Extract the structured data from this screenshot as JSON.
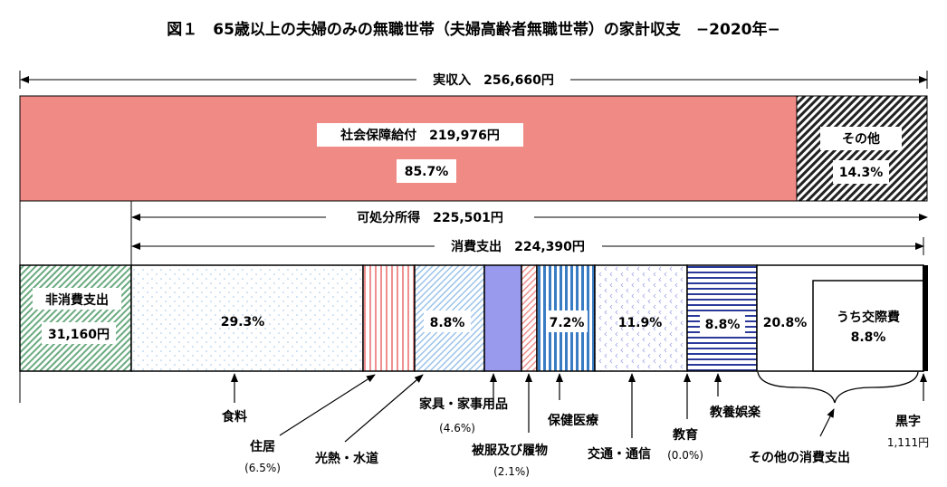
{
  "title": "図１　65歳以上の夫婦のみの無職世帯（夫婦高齢者無職世帯）の家計収支　−2020年−",
  "income": {
    "label": "実収入　256,660円",
    "social_security": {
      "label": "社会保障給付　219,976円",
      "pct": "85.7%",
      "share": 85.7,
      "color": "#f08a84"
    },
    "other": {
      "label": "その他",
      "pct": "14.3%",
      "share": 14.3
    }
  },
  "disposable_income": {
    "label": "可処分所得　225,501円"
  },
  "consumption": {
    "label": "消費支出　224,390円"
  },
  "non_consumption": {
    "label": "非消費支出",
    "amount": "31,160円"
  },
  "segments": {
    "food": {
      "name": "食料",
      "pct": "29.3%"
    },
    "housing": {
      "name": "住居",
      "pct": "(6.5%)"
    },
    "utilities": {
      "name": "光熱・水道"
    },
    "furniture": {
      "name": "家具・家事用品",
      "pct_in_bar": "8.8%",
      "pct": "(4.6%)"
    },
    "clothing": {
      "name": "被服及び履物",
      "pct": "(2.1%)"
    },
    "health": {
      "name": "保健医療",
      "pct": "7.2%"
    },
    "transport": {
      "name": "交通・通信",
      "pct": "11.9%"
    },
    "education": {
      "name": "教育",
      "pct": "(0.0%)"
    },
    "recreation": {
      "name": "教養娯楽",
      "pct": "8.8%"
    },
    "other": {
      "name": "その他の消費支出",
      "pct": "20.8%",
      "sub_label": "うち交際費",
      "sub_pct": "8.8%"
    },
    "surplus": {
      "name": "黒字",
      "amount": "1,111円"
    }
  }
}
